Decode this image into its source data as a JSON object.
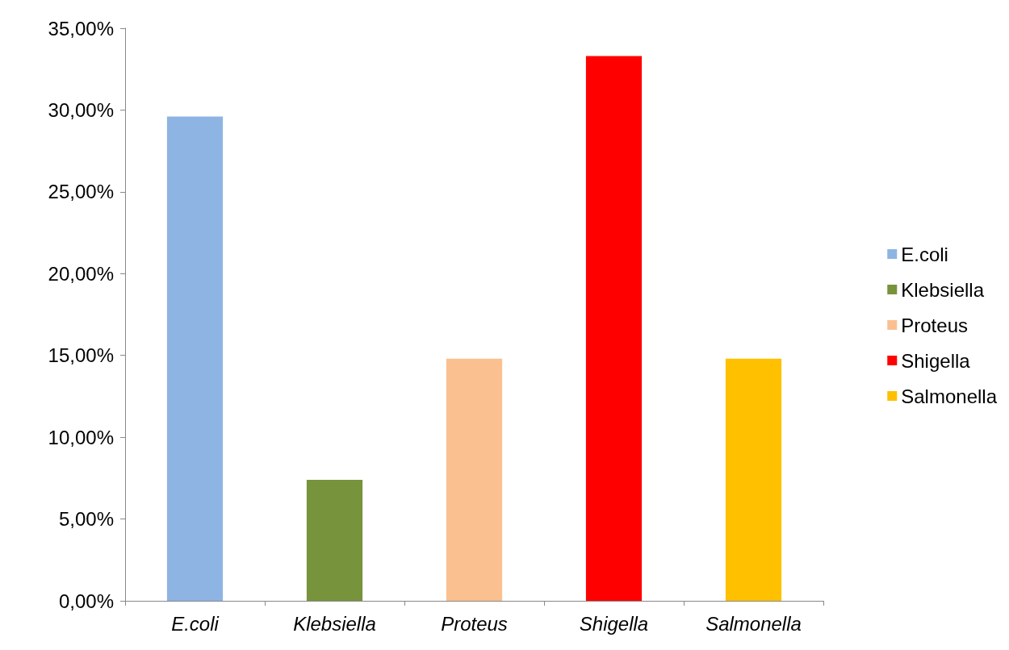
{
  "chart_data": {
    "type": "bar",
    "categories": [
      "E.coli",
      "Klebsiella",
      "Proteus",
      "Shigella",
      "Salmonella"
    ],
    "series": [
      {
        "name": "E.coli",
        "color": "#8eb4e3",
        "values": [
          29.6,
          null,
          null,
          null,
          null
        ]
      },
      {
        "name": "Klebsiella",
        "color": "#77933c",
        "values": [
          null,
          7.4,
          null,
          null,
          null
        ]
      },
      {
        "name": "Proteus",
        "color": "#fac090",
        "values": [
          null,
          null,
          14.8,
          null,
          null
        ]
      },
      {
        "name": "Shigella",
        "color": "#ff0000",
        "values": [
          null,
          null,
          null,
          33.3,
          null
        ]
      },
      {
        "name": "Salmonella",
        "color": "#ffc000",
        "values": [
          null,
          null,
          null,
          null,
          14.8
        ]
      }
    ],
    "ylim": [
      0,
      35
    ],
    "yticks": [
      {
        "value": 0,
        "label": "0,00%"
      },
      {
        "value": 5,
        "label": "5,00%"
      },
      {
        "value": 10,
        "label": "10,00%"
      },
      {
        "value": 15,
        "label": "15,00%"
      },
      {
        "value": 20,
        "label": "20,00%"
      },
      {
        "value": 25,
        "label": "25,00%"
      },
      {
        "value": 30,
        "label": "30,00%"
      },
      {
        "value": 35,
        "label": "35,00%"
      }
    ],
    "grid": false,
    "legend": "right"
  }
}
